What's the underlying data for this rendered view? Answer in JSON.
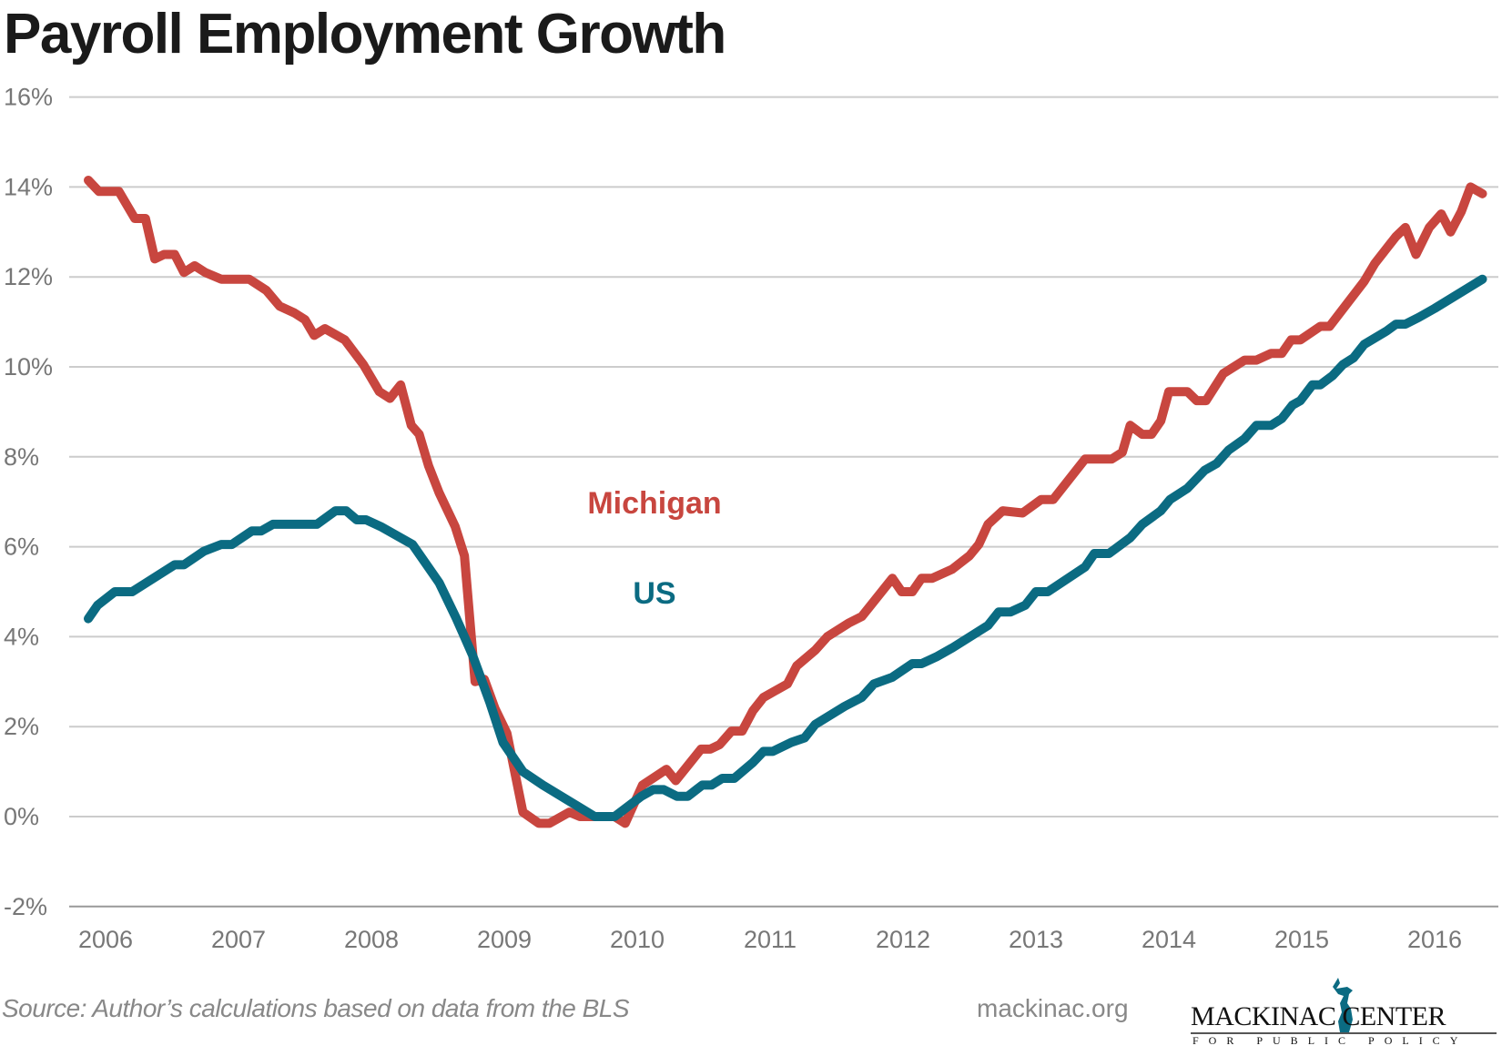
{
  "chart_data": {
    "type": "line",
    "title": "Payroll Employment Growth",
    "xlabel": "",
    "ylabel": "",
    "ylim": [
      -2,
      16
    ],
    "yticks": [
      "-2%",
      "0%",
      "2%",
      "4%",
      "6%",
      "8%",
      "10%",
      "12%",
      "14%",
      "16%"
    ],
    "ytick_values": [
      -2,
      0,
      2,
      4,
      6,
      8,
      10,
      12,
      14,
      16
    ],
    "xticks": [
      "2006",
      "2007",
      "2008",
      "2009",
      "2010",
      "2011",
      "2012",
      "2013",
      "2014",
      "2015",
      "2016"
    ],
    "grid": true,
    "legend": "inline labels",
    "series": [
      {
        "name": "Michigan",
        "color": "#c8463f",
        "points": [
          [
            2006.0,
            14.15
          ],
          [
            2006.08,
            13.9
          ],
          [
            2006.23,
            13.9
          ],
          [
            2006.35,
            13.3
          ],
          [
            2006.43,
            13.3
          ],
          [
            2006.5,
            12.4
          ],
          [
            2006.57,
            12.5
          ],
          [
            2006.65,
            12.5
          ],
          [
            2006.72,
            12.1
          ],
          [
            2006.8,
            12.25
          ],
          [
            2006.88,
            12.1
          ],
          [
            2007.0,
            11.95
          ],
          [
            2007.21,
            11.95
          ],
          [
            2007.34,
            11.7
          ],
          [
            2007.44,
            11.35
          ],
          [
            2007.55,
            11.2
          ],
          [
            2007.63,
            11.05
          ],
          [
            2007.7,
            10.7
          ],
          [
            2007.78,
            10.85
          ],
          [
            2007.93,
            10.6
          ],
          [
            2008.07,
            10.05
          ],
          [
            2008.19,
            9.45
          ],
          [
            2008.27,
            9.3
          ],
          [
            2008.35,
            9.6
          ],
          [
            2008.43,
            8.7
          ],
          [
            2008.49,
            8.5
          ],
          [
            2008.56,
            7.8
          ],
          [
            2008.64,
            7.2
          ],
          [
            2008.76,
            6.45
          ],
          [
            2008.83,
            5.8
          ],
          [
            2008.91,
            3.0
          ],
          [
            2008.98,
            3.05
          ],
          [
            2009.06,
            2.4
          ],
          [
            2009.15,
            1.85
          ],
          [
            2009.27,
            0.1
          ],
          [
            2009.39,
            -0.15
          ],
          [
            2009.47,
            -0.15
          ],
          [
            2009.62,
            0.1
          ],
          [
            2009.7,
            0.0
          ],
          [
            2009.96,
            0.0
          ],
          [
            2010.04,
            -0.15
          ],
          [
            2010.17,
            0.7
          ],
          [
            2010.35,
            1.05
          ],
          [
            2010.42,
            0.8
          ],
          [
            2010.61,
            1.5
          ],
          [
            2010.68,
            1.5
          ],
          [
            2010.75,
            1.6
          ],
          [
            2010.84,
            1.9
          ],
          [
            2010.92,
            1.9
          ],
          [
            2011.0,
            2.35
          ],
          [
            2011.08,
            2.65
          ],
          [
            2011.17,
            2.8
          ],
          [
            2011.26,
            2.95
          ],
          [
            2011.33,
            3.35
          ],
          [
            2011.47,
            3.7
          ],
          [
            2011.56,
            4.0
          ],
          [
            2011.72,
            4.3
          ],
          [
            2011.82,
            4.45
          ],
          [
            2012.05,
            5.3
          ],
          [
            2012.12,
            5.0
          ],
          [
            2012.2,
            5.0
          ],
          [
            2012.27,
            5.3
          ],
          [
            2012.35,
            5.3
          ],
          [
            2012.5,
            5.5
          ],
          [
            2012.63,
            5.8
          ],
          [
            2012.7,
            6.05
          ],
          [
            2012.77,
            6.5
          ],
          [
            2012.88,
            6.8
          ],
          [
            2013.03,
            6.75
          ],
          [
            2013.17,
            7.05
          ],
          [
            2013.26,
            7.05
          ],
          [
            2013.5,
            7.95
          ],
          [
            2013.7,
            7.95
          ],
          [
            2013.78,
            8.1
          ],
          [
            2013.84,
            8.7
          ],
          [
            2013.93,
            8.5
          ],
          [
            2014.0,
            8.5
          ],
          [
            2014.07,
            8.8
          ],
          [
            2014.13,
            9.45
          ],
          [
            2014.27,
            9.45
          ],
          [
            2014.34,
            9.25
          ],
          [
            2014.41,
            9.25
          ],
          [
            2014.54,
            9.85
          ],
          [
            2014.7,
            10.15
          ],
          [
            2014.79,
            10.15
          ],
          [
            2014.9,
            10.3
          ],
          [
            2014.98,
            10.3
          ],
          [
            2015.05,
            10.6
          ],
          [
            2015.12,
            10.6
          ],
          [
            2015.27,
            10.9
          ],
          [
            2015.34,
            10.9
          ],
          [
            2015.6,
            11.9
          ],
          [
            2015.68,
            12.3
          ],
          [
            2015.84,
            12.9
          ],
          [
            2015.91,
            13.1
          ],
          [
            2015.99,
            12.5
          ],
          [
            2016.09,
            13.1
          ],
          [
            2016.18,
            13.4
          ],
          [
            2016.25,
            13.0
          ],
          [
            2016.33,
            13.45
          ],
          [
            2016.4,
            14.0
          ],
          [
            2016.49,
            13.85
          ]
        ]
      },
      {
        "name": "US",
        "color": "#0b6b82",
        "points": [
          [
            2006.0,
            4.4
          ],
          [
            2006.07,
            4.7
          ],
          [
            2006.2,
            5.0
          ],
          [
            2006.33,
            5.0
          ],
          [
            2006.65,
            5.6
          ],
          [
            2006.72,
            5.6
          ],
          [
            2006.87,
            5.9
          ],
          [
            2007.0,
            6.05
          ],
          [
            2007.08,
            6.05
          ],
          [
            2007.23,
            6.35
          ],
          [
            2007.3,
            6.35
          ],
          [
            2007.39,
            6.5
          ],
          [
            2007.72,
            6.5
          ],
          [
            2007.86,
            6.8
          ],
          [
            2007.94,
            6.8
          ],
          [
            2008.02,
            6.6
          ],
          [
            2008.09,
            6.6
          ],
          [
            2008.2,
            6.45
          ],
          [
            2008.44,
            6.05
          ],
          [
            2008.64,
            5.2
          ],
          [
            2008.77,
            4.4
          ],
          [
            2008.89,
            3.6
          ],
          [
            2009.02,
            2.55
          ],
          [
            2009.12,
            1.65
          ],
          [
            2009.27,
            1.0
          ],
          [
            2009.42,
            0.7
          ],
          [
            2009.81,
            0.0
          ],
          [
            2009.96,
            0.0
          ],
          [
            2010.16,
            0.45
          ],
          [
            2010.25,
            0.6
          ],
          [
            2010.33,
            0.6
          ],
          [
            2010.43,
            0.45
          ],
          [
            2010.51,
            0.45
          ],
          [
            2010.62,
            0.7
          ],
          [
            2010.69,
            0.7
          ],
          [
            2010.77,
            0.85
          ],
          [
            2010.86,
            0.85
          ],
          [
            2011.0,
            1.2
          ],
          [
            2011.08,
            1.45
          ],
          [
            2011.15,
            1.45
          ],
          [
            2011.29,
            1.65
          ],
          [
            2011.39,
            1.75
          ],
          [
            2011.47,
            2.05
          ],
          [
            2011.69,
            2.45
          ],
          [
            2011.82,
            2.65
          ],
          [
            2011.91,
            2.95
          ],
          [
            2012.05,
            3.1
          ],
          [
            2012.2,
            3.4
          ],
          [
            2012.27,
            3.4
          ],
          [
            2012.38,
            3.55
          ],
          [
            2012.5,
            3.75
          ],
          [
            2012.77,
            4.25
          ],
          [
            2012.85,
            4.55
          ],
          [
            2012.94,
            4.55
          ],
          [
            2013.05,
            4.7
          ],
          [
            2013.13,
            5.0
          ],
          [
            2013.22,
            5.0
          ],
          [
            2013.5,
            5.55
          ],
          [
            2013.57,
            5.85
          ],
          [
            2013.68,
            5.85
          ],
          [
            2013.84,
            6.2
          ],
          [
            2013.93,
            6.5
          ],
          [
            2014.07,
            6.8
          ],
          [
            2014.14,
            7.05
          ],
          [
            2014.27,
            7.3
          ],
          [
            2014.4,
            7.7
          ],
          [
            2014.49,
            7.85
          ],
          [
            2014.58,
            8.15
          ],
          [
            2014.7,
            8.4
          ],
          [
            2014.79,
            8.7
          ],
          [
            2014.9,
            8.7
          ],
          [
            2014.98,
            8.85
          ],
          [
            2015.06,
            9.15
          ],
          [
            2015.12,
            9.25
          ],
          [
            2015.21,
            9.6
          ],
          [
            2015.27,
            9.6
          ],
          [
            2015.36,
            9.8
          ],
          [
            2015.44,
            10.05
          ],
          [
            2015.52,
            10.2
          ],
          [
            2015.6,
            10.5
          ],
          [
            2015.77,
            10.8
          ],
          [
            2015.84,
            10.95
          ],
          [
            2015.91,
            10.95
          ],
          [
            2016.01,
            11.1
          ],
          [
            2016.13,
            11.3
          ],
          [
            2016.49,
            11.95
          ]
        ]
      }
    ]
  },
  "footer": {
    "source": "Source: Author’s calculations based on data from the BLS",
    "site": "mackinac.org",
    "logo_name": "MACKINAC CENTER",
    "logo_sub": "FOR PUBLIC POLICY"
  }
}
